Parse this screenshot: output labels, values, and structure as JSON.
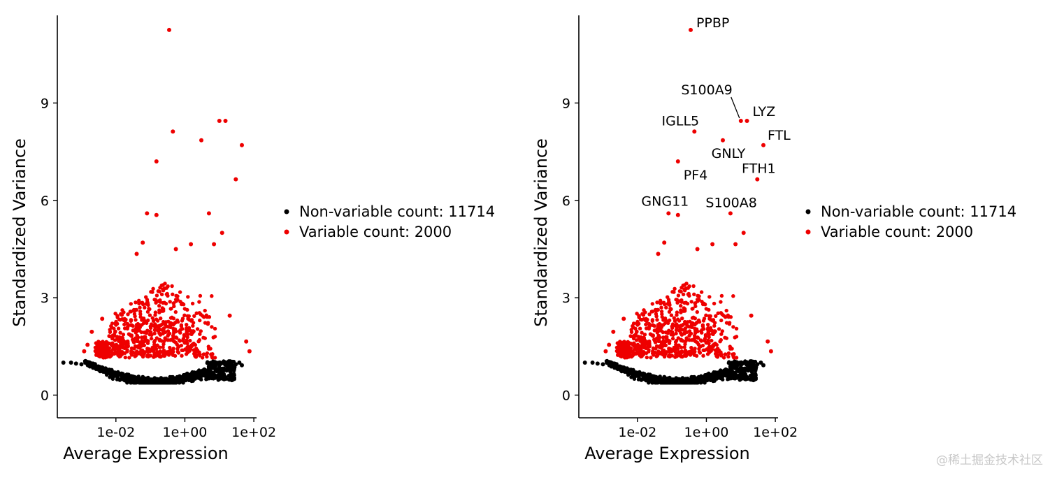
{
  "chart_data": [
    {
      "type": "scatter",
      "panel": "left",
      "title": "",
      "xlabel": "Average Expression",
      "ylabel": "Standardized Variance",
      "xscale": "log10",
      "xlim": [
        0.0002,
        120
      ],
      "ylim": [
        -0.7,
        11.7
      ],
      "xticks": [
        {
          "value": 0.01,
          "label": "1e-02"
        },
        {
          "value": 1,
          "label": "1e+00"
        },
        {
          "value": 100,
          "label": "1e+02"
        }
      ],
      "yticks": [
        {
          "value": 0,
          "label": "0"
        },
        {
          "value": 3,
          "label": "3"
        },
        {
          "value": 6,
          "label": "6"
        },
        {
          "value": 9,
          "label": "9"
        }
      ],
      "legend": {
        "position": "right",
        "entries": [
          {
            "label": "Non-variable count: 11714",
            "color": "#000000"
          },
          {
            "label": "Variable count: 2000",
            "color": "#ee0000"
          }
        ]
      },
      "series": [
        {
          "name": "Non-variable",
          "count": 11714,
          "color": "#000000",
          "highlighted_points": [
            [
              0.0003,
              1.0
            ],
            [
              0.0005,
              1.0
            ],
            [
              0.0007,
              0.97
            ],
            [
              0.001,
              0.95
            ],
            [
              45,
              0.92
            ],
            [
              38,
              1.0
            ],
            [
              30,
              0.95
            ]
          ]
        },
        {
          "name": "Variable",
          "count": 2000,
          "color": "#ee0000",
          "highlighted_points": [
            [
              0.35,
              11.25
            ],
            [
              0.45,
              8.12
            ],
            [
              0.15,
              7.2
            ],
            [
              3.0,
              7.85
            ],
            [
              10,
              8.45
            ],
            [
              15,
              8.45
            ],
            [
              45,
              7.7
            ],
            [
              30,
              6.65
            ],
            [
              0.08,
              5.6
            ],
            [
              0.15,
              5.55
            ],
            [
              5,
              5.6
            ],
            [
              7,
              4.65
            ],
            [
              12,
              5.0
            ],
            [
              0.55,
              4.5
            ],
            [
              1.5,
              4.65
            ],
            [
              0.06,
              4.7
            ],
            [
              0.04,
              4.35
            ],
            [
              20,
              2.45
            ],
            [
              60,
              1.65
            ],
            [
              75,
              1.35
            ],
            [
              0.0012,
              1.35
            ],
            [
              0.0015,
              1.55
            ],
            [
              0.002,
              1.95
            ],
            [
              0.004,
              2.35
            ]
          ]
        }
      ],
      "annotations": []
    },
    {
      "type": "scatter",
      "panel": "right",
      "title": "",
      "xlabel": "Average Expression",
      "ylabel": "Standardized Variance",
      "xscale": "log10",
      "xlim": [
        0.0002,
        120
      ],
      "ylim": [
        -0.7,
        11.7
      ],
      "xticks": [
        {
          "value": 0.01,
          "label": "1e-02"
        },
        {
          "value": 1,
          "label": "1e+00"
        },
        {
          "value": 100,
          "label": "1e+02"
        }
      ],
      "yticks": [
        {
          "value": 0,
          "label": "0"
        },
        {
          "value": 3,
          "label": "3"
        },
        {
          "value": 6,
          "label": "6"
        },
        {
          "value": 9,
          "label": "9"
        }
      ],
      "legend": {
        "position": "right",
        "entries": [
          {
            "label": "Non-variable count: 11714",
            "color": "#000000"
          },
          {
            "label": "Variable count: 2000",
            "color": "#ee0000"
          }
        ]
      },
      "series": [
        {
          "name": "Non-variable",
          "count": 11714,
          "color": "#000000",
          "highlighted_points": [
            [
              0.0003,
              1.0
            ],
            [
              0.0005,
              1.0
            ],
            [
              0.0007,
              0.97
            ],
            [
              0.001,
              0.95
            ],
            [
              45,
              0.92
            ],
            [
              38,
              1.0
            ],
            [
              30,
              0.95
            ]
          ]
        },
        {
          "name": "Variable",
          "count": 2000,
          "color": "#ee0000",
          "highlighted_points": [
            [
              0.35,
              11.25
            ],
            [
              0.45,
              8.12
            ],
            [
              0.15,
              7.2
            ],
            [
              3.0,
              7.85
            ],
            [
              10,
              8.45
            ],
            [
              15,
              8.45
            ],
            [
              45,
              7.7
            ],
            [
              30,
              6.65
            ],
            [
              0.08,
              5.6
            ],
            [
              0.15,
              5.55
            ],
            [
              5,
              5.6
            ],
            [
              7,
              4.65
            ],
            [
              12,
              5.0
            ],
            [
              0.55,
              4.5
            ],
            [
              1.5,
              4.65
            ],
            [
              0.06,
              4.7
            ],
            [
              0.04,
              4.35
            ],
            [
              20,
              2.45
            ],
            [
              60,
              1.65
            ],
            [
              75,
              1.35
            ],
            [
              0.0012,
              1.35
            ],
            [
              0.0015,
              1.55
            ],
            [
              0.002,
              1.95
            ],
            [
              0.004,
              2.35
            ]
          ]
        }
      ],
      "annotations": [
        {
          "label": "PPBP",
          "x": 0.35,
          "y": 11.25
        },
        {
          "label": "S100A9",
          "x": 10,
          "y": 8.45,
          "leader_line": true
        },
        {
          "label": "LYZ",
          "x": 15,
          "y": 8.45
        },
        {
          "label": "IGLL5",
          "x": 0.45,
          "y": 8.12
        },
        {
          "label": "FTL",
          "x": 45,
          "y": 7.7
        },
        {
          "label": "GNLY",
          "x": 3.0,
          "y": 7.85
        },
        {
          "label": "PF4",
          "x": 0.15,
          "y": 7.2
        },
        {
          "label": "FTH1",
          "x": 30,
          "y": 6.65
        },
        {
          "label": "GNG11",
          "x": 0.08,
          "y": 5.6
        },
        {
          "label": "S100A8",
          "x": 7,
          "y": 5.55
        }
      ]
    }
  ],
  "watermark": "@稀土掘金技术社区"
}
